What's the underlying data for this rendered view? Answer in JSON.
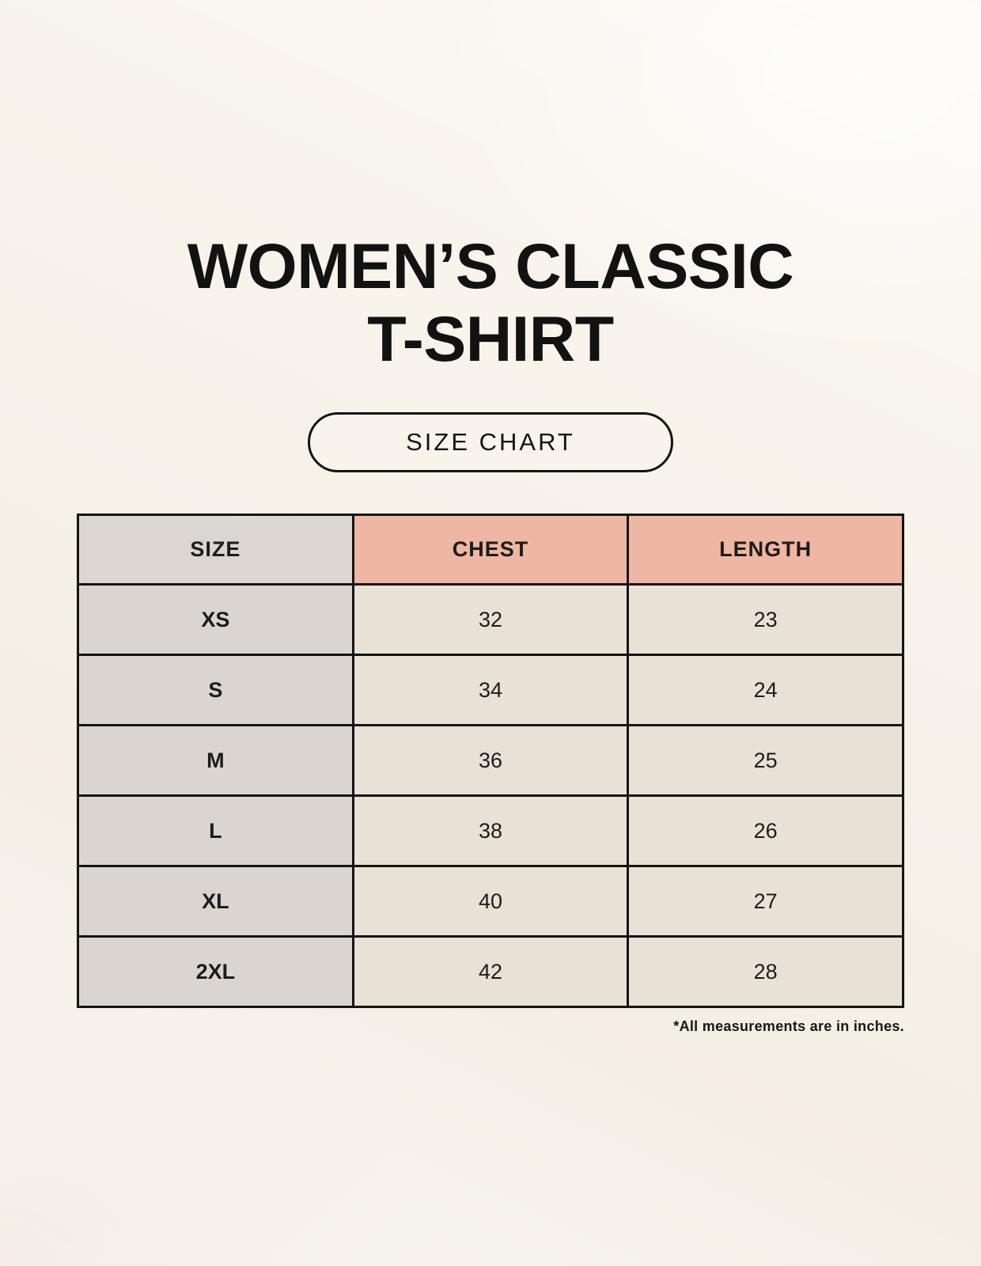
{
  "page": {
    "title_line1": "WOMEN’S CLASSIC",
    "title_line2": "T-SHIRT",
    "badge_label": "SIZE CHART",
    "footnote": "*All measurements are in inches."
  },
  "colors": {
    "background": "#f8f4eb",
    "header_size_bg": "#dcd6d2",
    "header_measure_bg": "#efb6a3",
    "size_column_bg": "#dbd5d1",
    "value_cell_bg": "#e8e1d5",
    "table_border": "#141414",
    "text": "#141414"
  },
  "table": {
    "columns": [
      "SIZE",
      "CHEST",
      "LENGTH"
    ],
    "rows": [
      {
        "size": "XS",
        "chest": "32",
        "length": "23"
      },
      {
        "size": "S",
        "chest": "34",
        "length": "24"
      },
      {
        "size": "M",
        "chest": "36",
        "length": "25"
      },
      {
        "size": "L",
        "chest": "38",
        "length": "26"
      },
      {
        "size": "XL",
        "chest": "40",
        "length": "27"
      },
      {
        "size": "2XL",
        "chest": "42",
        "length": "28"
      }
    ]
  },
  "chart_data": {
    "type": "table",
    "title": "WOMEN’S CLASSIC T-SHIRT",
    "subtitle": "SIZE CHART",
    "columns": [
      "SIZE",
      "CHEST",
      "LENGTH"
    ],
    "rows": [
      {
        "size": "XS",
        "chest": 32,
        "length": 23
      },
      {
        "size": "S",
        "chest": 34,
        "length": 24
      },
      {
        "size": "M",
        "chest": 36,
        "length": 25
      },
      {
        "size": "L",
        "chest": 38,
        "length": 26
      },
      {
        "size": "XL",
        "chest": 40,
        "length": 27
      },
      {
        "size": "2XL",
        "chest": 42,
        "length": 28
      }
    ],
    "units": "inches",
    "footnote": "*All measurements are in inches."
  }
}
